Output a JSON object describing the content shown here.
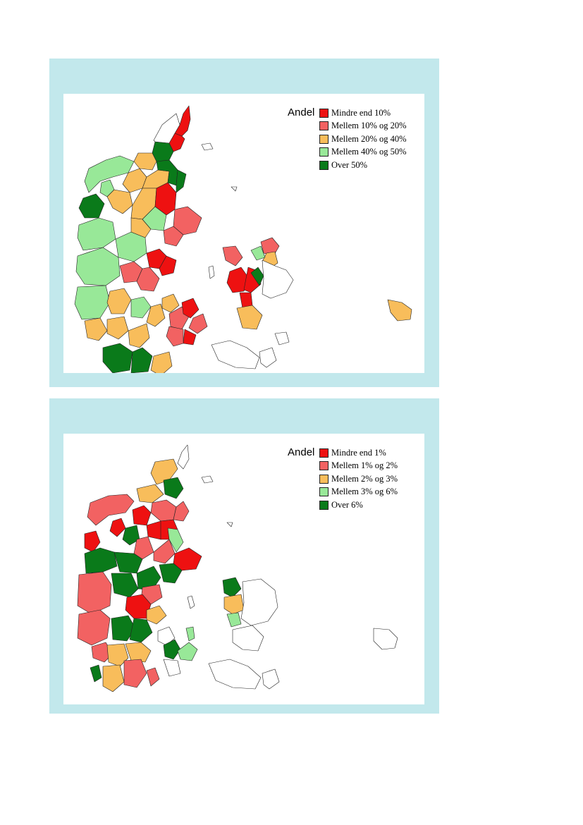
{
  "palette": {
    "red": "#ee1111",
    "salmon": "#f26262",
    "orange": "#f8bd5b",
    "lightgreen": "#98e898",
    "darkgreen": "#0a7a1a",
    "none": "#ffffff",
    "panel_bg": "#c2e8ec"
  },
  "maps": [
    {
      "legend": {
        "title": "Andel",
        "items": [
          {
            "label": "Mindre end 10%",
            "color": "#ee1111"
          },
          {
            "label": "Mellem 10% og 20%",
            "color": "#f26262"
          },
          {
            "label": "Mellem 20% og 40%",
            "color": "#f8bd5b"
          },
          {
            "label": "Mellem 40% og 50%",
            "color": "#98e898"
          },
          {
            "label": "Over 50%",
            "color": "#0a7a1a"
          }
        ]
      }
    },
    {
      "legend": {
        "title": "Andel",
        "items": [
          {
            "label": "Mindre end 1%",
            "color": "#ee1111"
          },
          {
            "label": "Mellem 1% og 2%",
            "color": "#f26262"
          },
          {
            "label": "Mellem 2% og 3%",
            "color": "#f8bd5b"
          },
          {
            "label": "Mellem 3% og 6%",
            "color": "#98e898"
          },
          {
            "label": "Over 6%",
            "color": "#0a7a1a"
          }
        ]
      }
    }
  ]
}
